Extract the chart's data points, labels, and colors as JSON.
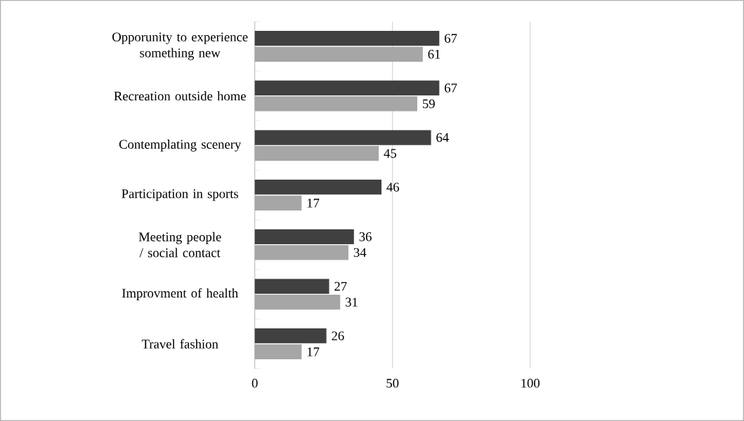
{
  "chart_data": {
    "type": "bar",
    "orientation": "horizontal",
    "categories": [
      "Opporunity to experience something new",
      "Recreation outside home",
      "Contemplating scenery",
      "Participation in sports",
      "Meeting people / social contact",
      "Improvment of health",
      "Travel fashion"
    ],
    "series": [
      {
        "color": "#404040",
        "values": [
          67,
          67,
          64,
          46,
          36,
          27,
          26
        ],
        "value_labels": [
          "67",
          "67",
          "64",
          "46",
          "36",
          "27",
          "26"
        ]
      },
      {
        "color": "#a6a6a6",
        "values": [
          61,
          59,
          45,
          17,
          34,
          31,
          17
        ],
        "value_labels": [
          "61",
          "59",
          "45",
          "17",
          "34",
          "31",
          "17"
        ]
      }
    ],
    "xlim": [
      0,
      100
    ],
    "xticks": [
      0,
      50,
      100
    ],
    "grid": "x"
  }
}
